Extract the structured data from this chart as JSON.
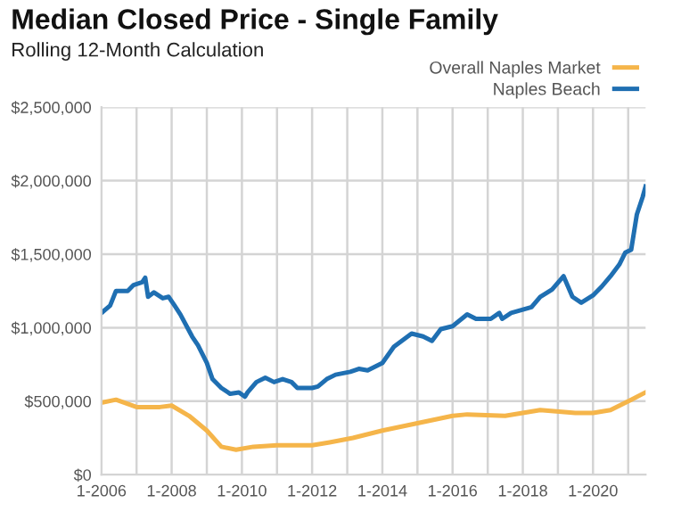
{
  "chart_data": {
    "type": "line",
    "title": "Median Closed Price - Single Family",
    "subtitle": "Rolling 12-Month Calculation",
    "series": [
      {
        "name": "Overall Naples Market",
        "color": "#f5b54a",
        "x": [
          "2006-01",
          "2006-06",
          "2007-01",
          "2007-09",
          "2008-01",
          "2008-07",
          "2009-01",
          "2009-06",
          "2009-11",
          "2010-05",
          "2011-01",
          "2012-01",
          "2012-07",
          "2013-03",
          "2014-01",
          "2015-01",
          "2016-01",
          "2016-06",
          "2017-07",
          "2018-07",
          "2019-07",
          "2020-01",
          "2020-07",
          "2021-02",
          "2021-07"
        ],
        "values": [
          490000,
          510000,
          460000,
          460000,
          470000,
          400000,
          300000,
          190000,
          170000,
          190000,
          200000,
          200000,
          220000,
          250000,
          300000,
          350000,
          400000,
          410000,
          400000,
          440000,
          420000,
          420000,
          440000,
          510000,
          560000
        ]
      },
      {
        "name": "Naples Beach",
        "color": "#1f6fb2",
        "x": [
          "2006-01",
          "2006-04",
          "2006-06",
          "2006-10",
          "2006-12",
          "2007-03",
          "2007-04",
          "2007-05",
          "2007-07",
          "2007-10",
          "2007-12",
          "2008-02",
          "2008-04",
          "2008-08",
          "2008-10",
          "2009-01",
          "2009-03",
          "2009-06",
          "2009-09",
          "2009-12",
          "2010-02",
          "2010-03",
          "2010-06",
          "2010-09",
          "2010-12",
          "2011-03",
          "2011-06",
          "2011-08",
          "2012-01",
          "2012-03",
          "2012-06",
          "2012-09",
          "2013-02",
          "2013-05",
          "2013-08",
          "2014-01",
          "2014-05",
          "2014-11",
          "2015-03",
          "2015-06",
          "2015-09",
          "2016-01",
          "2016-06",
          "2016-09",
          "2017-02",
          "2017-05",
          "2017-06",
          "2017-09",
          "2018-04",
          "2018-07",
          "2018-11",
          "2019-03",
          "2019-06",
          "2019-09",
          "2020-01",
          "2020-04",
          "2020-07",
          "2020-10",
          "2020-12",
          "2021-02",
          "2021-04",
          "2021-06",
          "2021-07"
        ],
        "values": [
          1100000,
          1150000,
          1250000,
          1250000,
          1290000,
          1310000,
          1340000,
          1210000,
          1240000,
          1200000,
          1210000,
          1150000,
          1090000,
          940000,
          880000,
          760000,
          650000,
          590000,
          550000,
          560000,
          530000,
          560000,
          630000,
          660000,
          630000,
          650000,
          630000,
          590000,
          590000,
          600000,
          650000,
          680000,
          700000,
          720000,
          710000,
          760000,
          870000,
          960000,
          940000,
          910000,
          990000,
          1010000,
          1090000,
          1060000,
          1060000,
          1100000,
          1060000,
          1100000,
          1140000,
          1210000,
          1260000,
          1350000,
          1210000,
          1170000,
          1220000,
          1280000,
          1350000,
          1430000,
          1510000,
          1530000,
          1770000,
          1890000,
          1960000
        ]
      }
    ],
    "xlim": [
      "2006-01",
      "2021-07"
    ],
    "xticks": [
      {
        "value": "2006-01",
        "label": "1-2006"
      },
      {
        "value": "2007-01",
        "label": null
      },
      {
        "value": "2008-01",
        "label": "1-2008"
      },
      {
        "value": "2009-01",
        "label": null
      },
      {
        "value": "2010-01",
        "label": "1-2010"
      },
      {
        "value": "2011-01",
        "label": null
      },
      {
        "value": "2012-01",
        "label": "1-2012"
      },
      {
        "value": "2013-01",
        "label": null
      },
      {
        "value": "2014-01",
        "label": "1-2014"
      },
      {
        "value": "2015-01",
        "label": null
      },
      {
        "value": "2016-01",
        "label": "1-2016"
      },
      {
        "value": "2017-01",
        "label": null
      },
      {
        "value": "2018-01",
        "label": "1-2018"
      },
      {
        "value": "2019-01",
        "label": null
      },
      {
        "value": "2020-01",
        "label": "1-2020"
      },
      {
        "value": "2021-01",
        "label": null
      }
    ],
    "ylim": [
      0,
      2500000
    ],
    "yticks": [
      {
        "value": 0,
        "label": "$0"
      },
      {
        "value": 500000,
        "label": "$500,000"
      },
      {
        "value": 1000000,
        "label": "$1,000,000"
      },
      {
        "value": 1500000,
        "label": "$1,500,000"
      },
      {
        "value": 2000000,
        "label": "$2,000,000"
      },
      {
        "value": 2500000,
        "label": "$2,500,000"
      }
    ],
    "grid": true,
    "legend": "top right",
    "marker": "none",
    "line_style": "solid"
  }
}
